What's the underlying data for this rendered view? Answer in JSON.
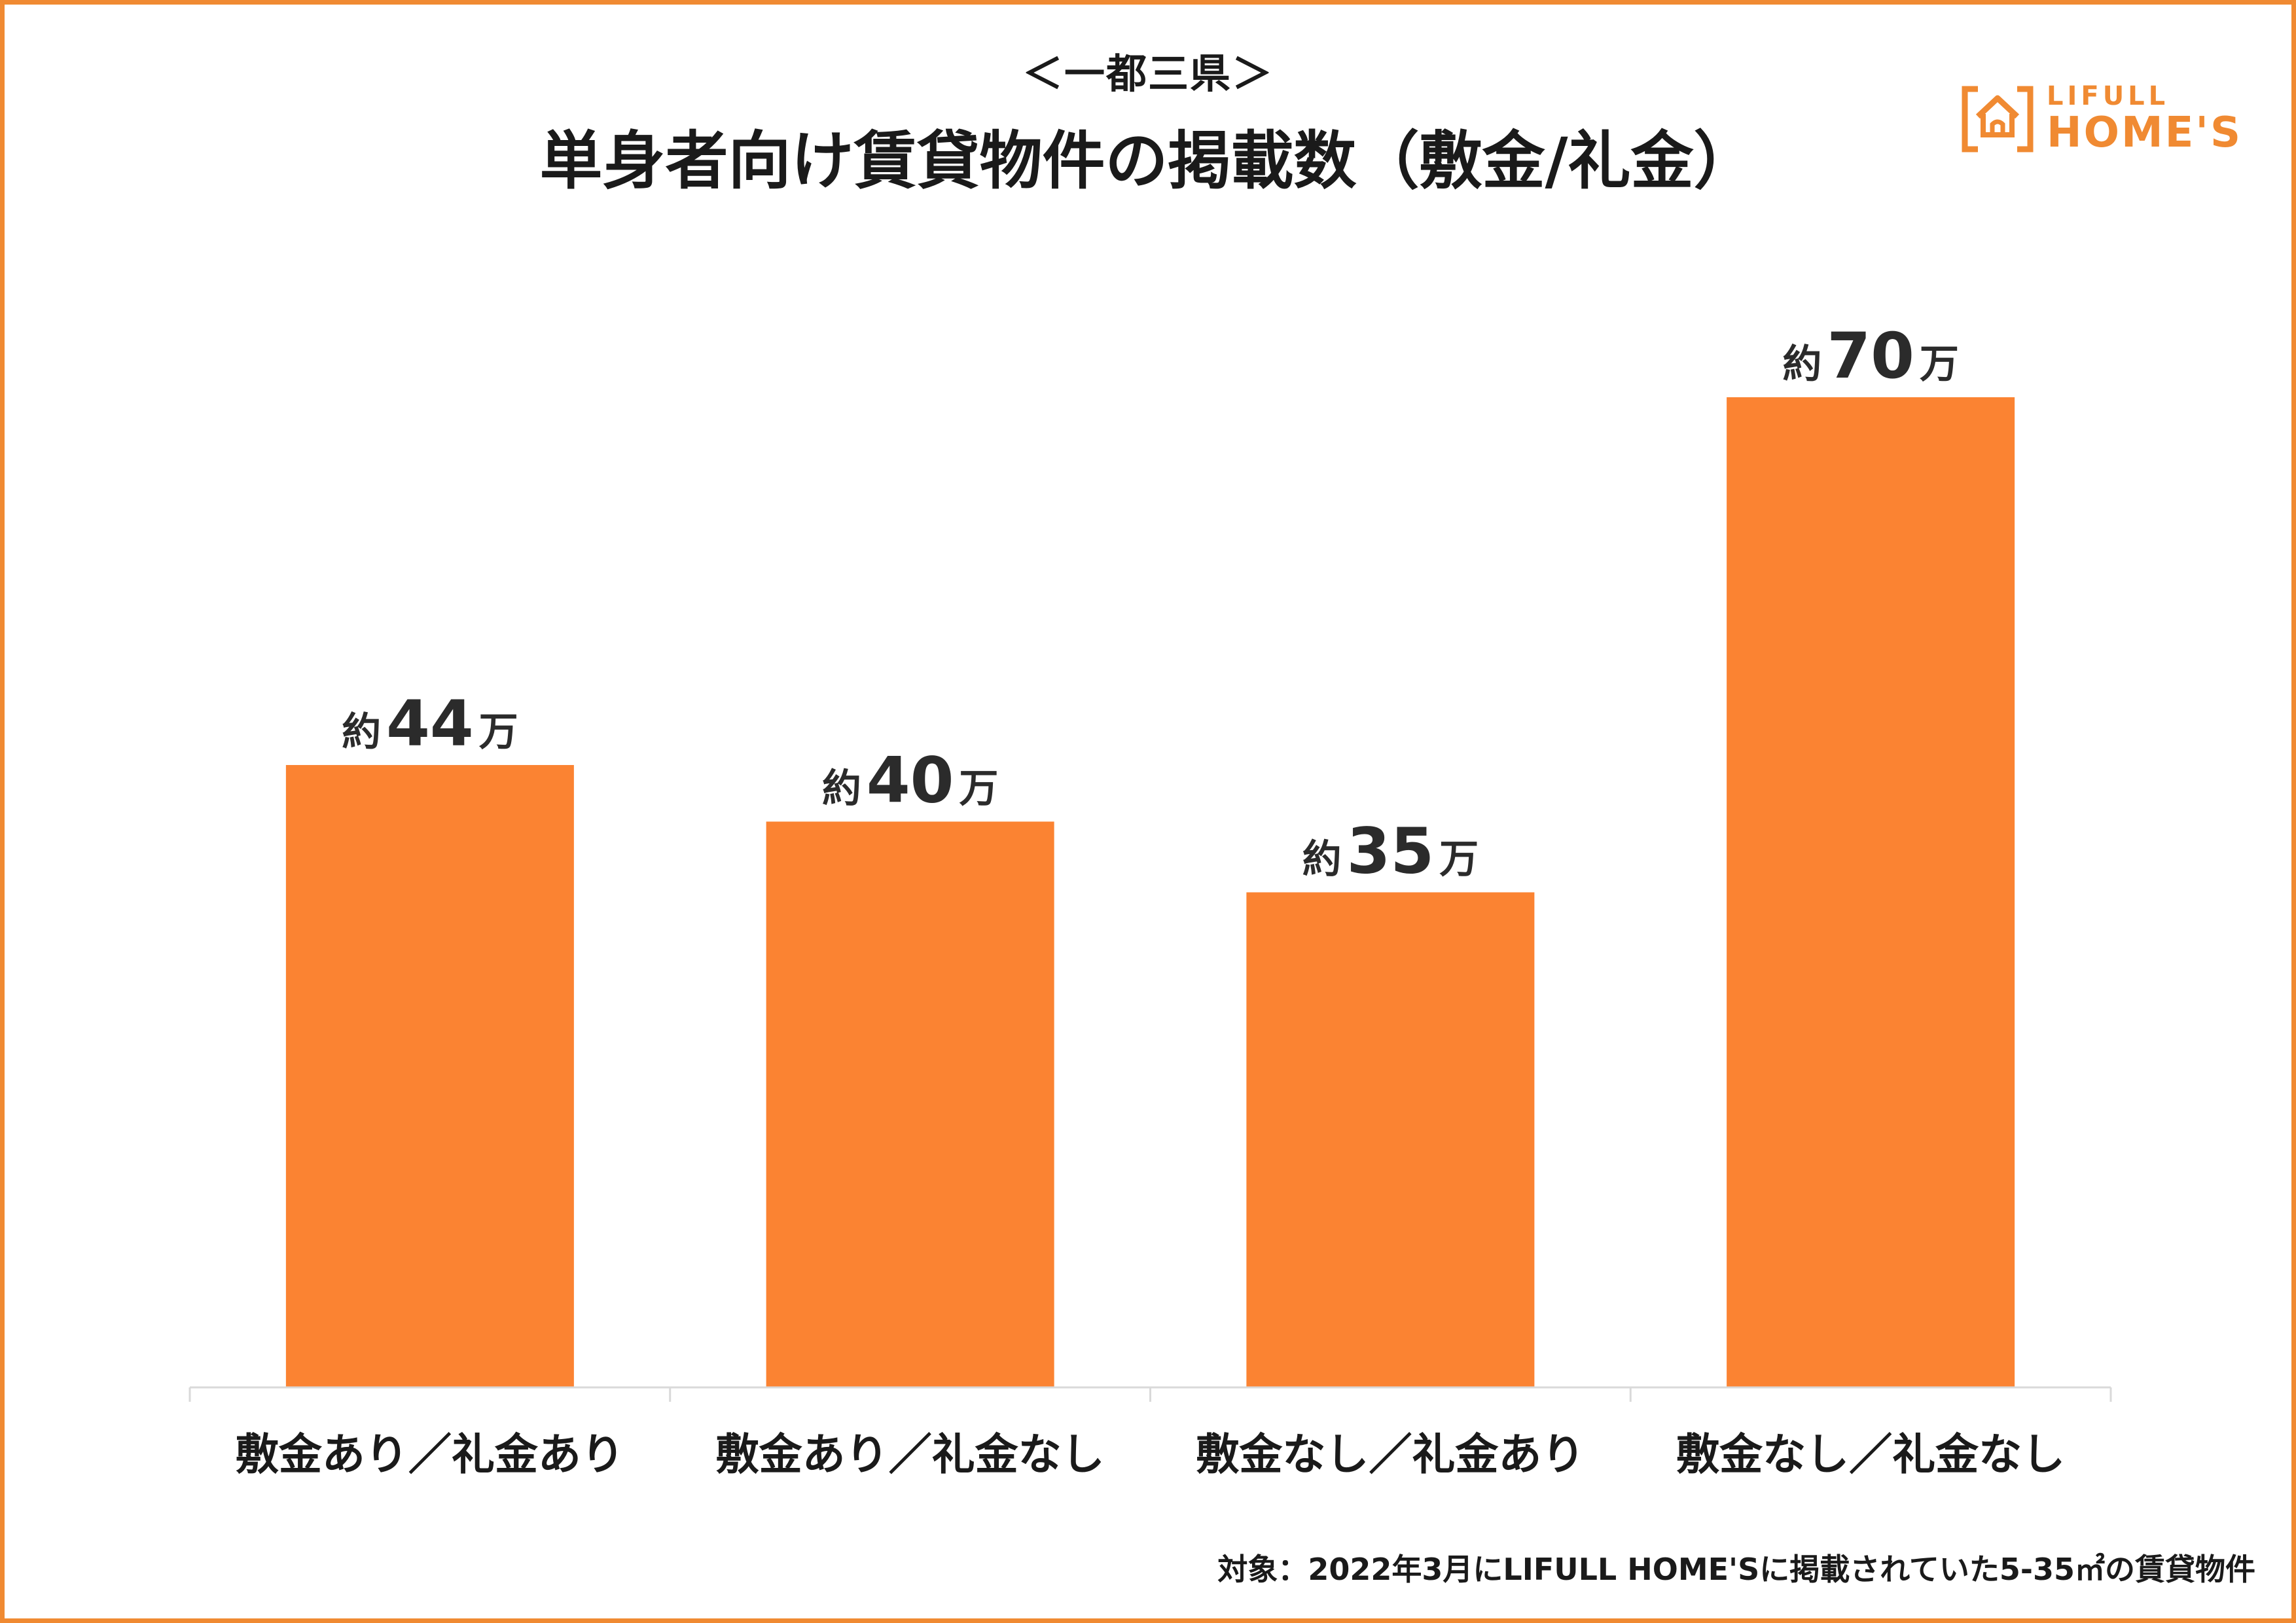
{
  "header": {
    "subtitle": "＜一都三県＞",
    "title": "単身者向け賃貸物件の掲載数（敷金/礼金）"
  },
  "logo": {
    "line1": "LIFULL",
    "line2": "HOME'S"
  },
  "footnote": "対象：2022年3月にLIFULL HOME'Sに掲載されていた5-35㎡の賃貸物件",
  "colors": {
    "accent": "#f08a32",
    "bar": "#fb8332",
    "axis": "#d9d9d9"
  },
  "chart_data": {
    "type": "bar",
    "title": "単身者向け賃貸物件の掲載数（敷金/礼金）",
    "subtitle": "＜一都三県＞",
    "categories": [
      "敷金あり／礼金あり",
      "敷金あり／礼金なし",
      "敷金なし／礼金あり",
      "敷金なし／礼金なし"
    ],
    "values": [
      44,
      40,
      35,
      70
    ],
    "unit": "万",
    "value_labels": [
      {
        "prefix": "約",
        "number": "44",
        "suffix": "万"
      },
      {
        "prefix": "約",
        "number": "40",
        "suffix": "万"
      },
      {
        "prefix": "約",
        "number": "35",
        "suffix": "万"
      },
      {
        "prefix": "約",
        "number": "70",
        "suffix": "万"
      }
    ],
    "ylim": [
      0,
      70
    ],
    "grid": false,
    "legend": "none"
  }
}
